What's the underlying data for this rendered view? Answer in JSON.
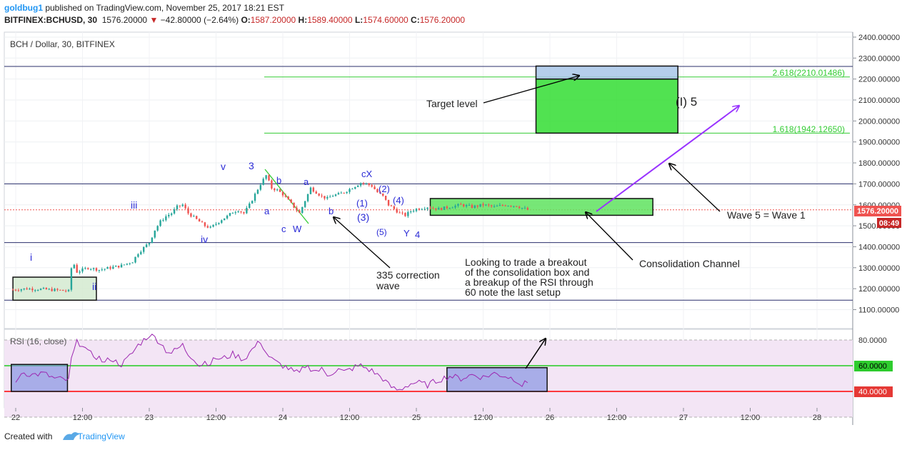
{
  "header": {
    "user": "goldbug1",
    "published": " published on TradingView.com, November 25, 2017 18:21 EST",
    "symbol": "BITFINEX:BCHUSD, 30",
    "last": "1576.20000",
    "change": "−42.80000 (−2.64%)",
    "ohlc": {
      "o": "1587.20000",
      "h": "1589.40000",
      "l": "1574.60000",
      "c": "1576.20000"
    },
    "o_label": "O:",
    "h_label": "H:",
    "l_label": "L:",
    "c_label": "C:"
  },
  "footer": {
    "created": "Created with",
    "brand": "TradingView"
  },
  "chart_data": {
    "type": "candlestick",
    "title": "BCH / Dollar, 30, BITFINEX",
    "price_axis": {
      "ticks": [
        1100,
        1200,
        1300,
        1400,
        1500,
        1600,
        1700,
        1800,
        1900,
        2000,
        2100,
        2200,
        2300,
        2400
      ],
      "tick_labels": [
        "1100.00000",
        "1200.00000",
        "1300.00000",
        "1400.00000",
        "1500.00000",
        "1600.00000",
        "1700.00000",
        "1800.00000",
        "1900.00000",
        "2000.00000",
        "2100.00000",
        "2200.00000",
        "2300.00000",
        "2400.00000"
      ],
      "ylim": [
        1000,
        2430
      ],
      "last_price_label": "1576.20000",
      "countdown_label": "08:49"
    },
    "time_axis": {
      "ticks": [
        0,
        12,
        24,
        36,
        48,
        60,
        72,
        84,
        96,
        108,
        120,
        132,
        144
      ],
      "tick_labels": [
        "22",
        "12:00",
        "23",
        "12:00",
        "24",
        "12:00",
        "25",
        "12:00",
        "26",
        "12:00",
        "27",
        "12:00",
        "28"
      ],
      "unit": "hours from 2017-11-22 00:00"
    },
    "price_path": [
      [
        -0.5,
        1195
      ],
      [
        2,
        1200
      ],
      [
        5,
        1197
      ],
      [
        8,
        1192
      ],
      [
        9.6,
        1188
      ],
      [
        9.8,
        1260
      ],
      [
        10.2,
        1335
      ],
      [
        11,
        1280
      ],
      [
        13,
        1300
      ],
      [
        15,
        1290
      ],
      [
        17,
        1300
      ],
      [
        19,
        1310
      ],
      [
        21,
        1330
      ],
      [
        22,
        1370
      ],
      [
        24,
        1420
      ],
      [
        25,
        1480
      ],
      [
        26,
        1520
      ],
      [
        27,
        1545
      ],
      [
        28,
        1560
      ],
      [
        29,
        1590
      ],
      [
        30,
        1600
      ],
      [
        31,
        1560
      ],
      [
        32,
        1540
      ],
      [
        33,
        1520
      ],
      [
        34,
        1500
      ],
      [
        35,
        1490
      ],
      [
        36,
        1510
      ],
      [
        37,
        1530
      ],
      [
        38,
        1545
      ],
      [
        39,
        1565
      ],
      [
        40,
        1575
      ],
      [
        41,
        1560
      ],
      [
        42,
        1600
      ],
      [
        43,
        1650
      ],
      [
        44,
        1700
      ],
      [
        45,
        1740
      ],
      [
        46,
        1680
      ],
      [
        47,
        1670
      ],
      [
        48,
        1650
      ],
      [
        49,
        1620
      ],
      [
        50,
        1590
      ],
      [
        51,
        1560
      ],
      [
        52,
        1620
      ],
      [
        53,
        1680
      ],
      [
        54,
        1660
      ],
      [
        55,
        1640
      ],
      [
        56,
        1630
      ],
      [
        57,
        1645
      ],
      [
        58,
        1650
      ],
      [
        59,
        1660
      ],
      [
        60,
        1675
      ],
      [
        61,
        1690
      ],
      [
        62,
        1705
      ],
      [
        63,
        1700
      ],
      [
        64,
        1690
      ],
      [
        65,
        1660
      ],
      [
        66,
        1640
      ],
      [
        67,
        1600
      ],
      [
        68,
        1580
      ],
      [
        69,
        1560
      ],
      [
        70,
        1550
      ],
      [
        71,
        1570
      ],
      [
        72,
        1580
      ],
      [
        74,
        1590
      ],
      [
        76,
        1580
      ],
      [
        78,
        1590
      ],
      [
        80,
        1600
      ],
      [
        82,
        1590
      ],
      [
        84,
        1600
      ],
      [
        86,
        1590
      ],
      [
        88,
        1600
      ],
      [
        90,
        1595
      ],
      [
        91,
        1585
      ],
      [
        92,
        1576
      ]
    ],
    "rsi": {
      "label": "RSI (16, close)",
      "ticks": [
        40,
        60,
        80
      ],
      "tick_labels": [
        "40.0000",
        "60.0000",
        "80.0000"
      ],
      "ylim": [
        30,
        90
      ],
      "path": [
        [
          0,
          45
        ],
        [
          1,
          55
        ],
        [
          3,
          53
        ],
        [
          5,
          54
        ],
        [
          7,
          50
        ],
        [
          9,
          49
        ],
        [
          9.6,
          48
        ],
        [
          10,
          65
        ],
        [
          11,
          78
        ],
        [
          12,
          77
        ],
        [
          13,
          70
        ],
        [
          14,
          68
        ],
        [
          15,
          66
        ],
        [
          16,
          62
        ],
        [
          17,
          66
        ],
        [
          18,
          63
        ],
        [
          19,
          61
        ],
        [
          20,
          65
        ],
        [
          21,
          70
        ],
        [
          22,
          76
        ],
        [
          23,
          80
        ],
        [
          24,
          84
        ],
        [
          25,
          82
        ],
        [
          26,
          78
        ],
        [
          27,
          72
        ],
        [
          28,
          70
        ],
        [
          29,
          73
        ],
        [
          30,
          76
        ],
        [
          31,
          69
        ],
        [
          32,
          66
        ],
        [
          33,
          60
        ],
        [
          34,
          63
        ],
        [
          35,
          62
        ],
        [
          36,
          66
        ],
        [
          37,
          65
        ],
        [
          38,
          67
        ],
        [
          39,
          69
        ],
        [
          40,
          67
        ],
        [
          41,
          65
        ],
        [
          42,
          70
        ],
        [
          43,
          75
        ],
        [
          44,
          79
        ],
        [
          45,
          70
        ],
        [
          46,
          65
        ],
        [
          47,
          62
        ],
        [
          48,
          60
        ],
        [
          49,
          58
        ],
        [
          50,
          55
        ],
        [
          51,
          54
        ],
        [
          52,
          60
        ],
        [
          53,
          58
        ],
        [
          54,
          56
        ],
        [
          55,
          57
        ],
        [
          56,
          53
        ],
        [
          57,
          55
        ],
        [
          58,
          57
        ],
        [
          59,
          55
        ],
        [
          60,
          57
        ],
        [
          61,
          59
        ],
        [
          62,
          60
        ],
        [
          63,
          58
        ],
        [
          64,
          56
        ],
        [
          65,
          53
        ],
        [
          66,
          50
        ],
        [
          67,
          45
        ],
        [
          68,
          42
        ],
        [
          69,
          41
        ],
        [
          70,
          44
        ],
        [
          71,
          46
        ],
        [
          72,
          47
        ],
        [
          74,
          45
        ],
        [
          76,
          49
        ],
        [
          78,
          52
        ],
        [
          80,
          50
        ],
        [
          82,
          53
        ],
        [
          84,
          51
        ],
        [
          86,
          54
        ],
        [
          88,
          52
        ],
        [
          90,
          49
        ],
        [
          91,
          45
        ],
        [
          92,
          47
        ]
      ]
    },
    "horizontal_lines": [
      2260,
      1700,
      1420,
      1145
    ],
    "fib_levels": [
      {
        "level": 2210,
        "label": "2.618(2210.01486)"
      },
      {
        "level": 1942,
        "label": "1.618(1942.12650)"
      }
    ],
    "boxes": [
      {
        "t0": -0.5,
        "t1": 14.5,
        "p0": 1145,
        "p1": 1255,
        "color": "#d4ead0"
      },
      {
        "t0": 74.5,
        "t1": 114.5,
        "p0": 1550,
        "p1": 1630,
        "color": "#5fe35f"
      },
      {
        "t0": 93.5,
        "t1": 119,
        "p0": 1942,
        "p1": 2200,
        "color": "#33dd33"
      },
      {
        "t0": 93.5,
        "t1": 119,
        "p0": 2200,
        "p1": 2262,
        "color": "#a8c6e8"
      }
    ],
    "annotations": {
      "target_level": "Target level",
      "wave5_label": "(I) 5",
      "consolidation": "Consolidation Channel",
      "wave_eq": "Wave 5 = Wave 1",
      "correction": [
        "335 correction",
        "wave"
      ],
      "note": [
        "Looking to trade a breakout",
        "of the consolidation box and",
        "a breakup of the RSI through",
        "60 note the last setup"
      ]
    },
    "wave_labels": {
      "i": "i",
      "ii": "ii",
      "iii": "iii",
      "iv": "iv",
      "v": "v",
      "n3": "3",
      "a1": "a",
      "b1": "b",
      "c1": "c",
      "W": "W",
      "a2": "a",
      "b2": "b",
      "cX": "cX",
      "p1": "(1)",
      "p2": "(2)",
      "p3": "(3)",
      "p4": "(4)",
      "p5": "(5)",
      "Y": "Y",
      "n4": "4"
    },
    "colors": {
      "up": "#26a69a",
      "down": "#ef5350",
      "rsi_line": "#9c27b0",
      "rsi_fill": "#f3e5f5",
      "rsi_60": "#22cc22",
      "rsi_40": "#ff0000",
      "wave_label": "#2b2bd6",
      "arrow_purple": "#9933ff",
      "last_price_bg": "#ef5350",
      "countdown_bg": "#c62828"
    }
  }
}
